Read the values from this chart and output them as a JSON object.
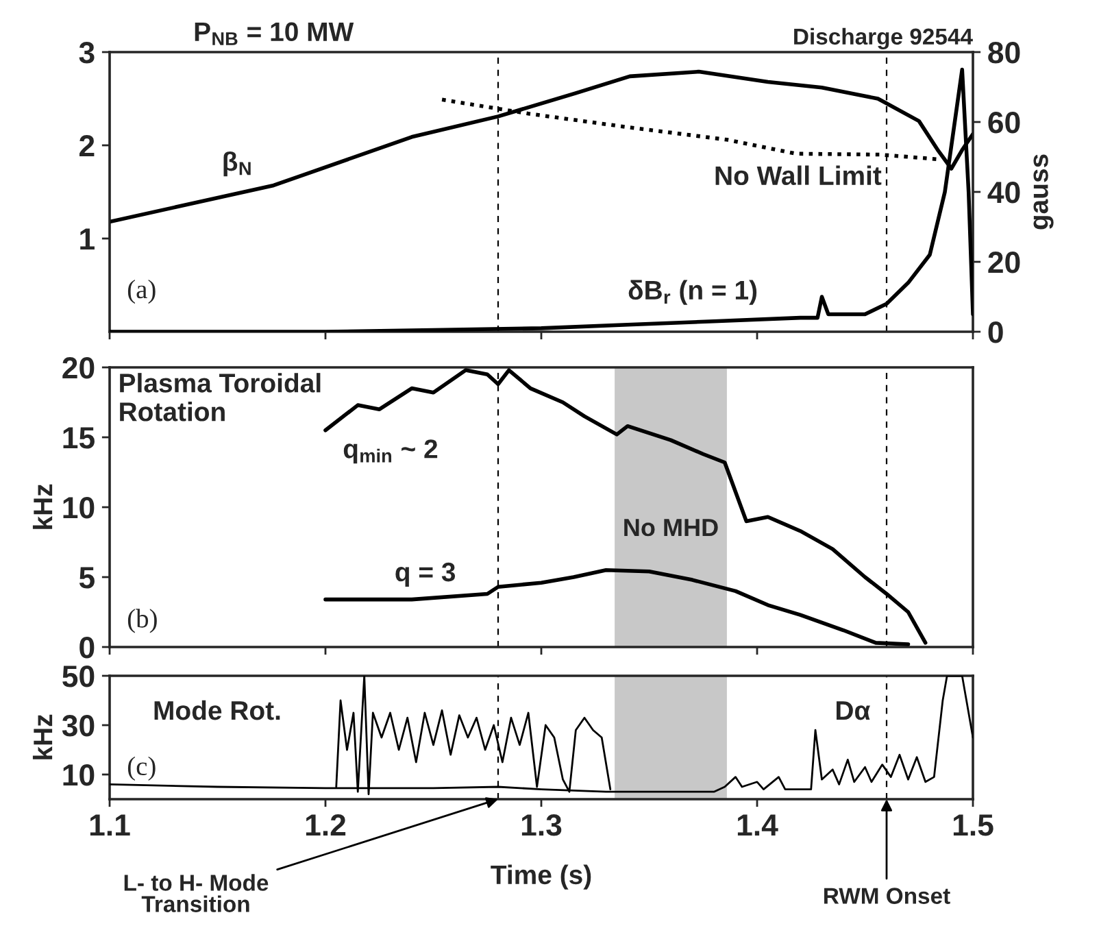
{
  "chart_data": [
    {
      "type": "line",
      "y2label": "gauss",
      "xlim": [
        1.1,
        1.5
      ],
      "xticks": [
        1.1,
        1.2,
        1.3,
        1.4,
        1.5
      ],
      "ylim": [
        0,
        3
      ],
      "yticks": [
        1,
        2,
        3
      ],
      "y2lim": [
        0,
        80
      ],
      "y2ticks": [
        0,
        20,
        40,
        60,
        80
      ],
      "tick_labels": "y",
      "grid": false,
      "legend": false,
      "annotations": [
        "P$_{NB}$ = 10 MW",
        "Discharge 92544",
        "(a)"
      ],
      "ref_lines": [
        {
          "axis": "x",
          "value": 1.28,
          "line_style": "dashed"
        },
        {
          "axis": "x",
          "value": 1.46,
          "line_style": "dashed"
        }
      ],
      "series": [
        {
          "name": "β$_{N}$",
          "color": "#000000",
          "line_style": "solid",
          "x": [
            1.1,
            1.176,
            1.24,
            1.28,
            1.316,
            1.341,
            1.373,
            1.405,
            1.43,
            1.456,
            1.475,
            1.484,
            1.49,
            1.495,
            1.5
          ],
          "values": [
            1.18,
            1.57,
            2.09,
            2.31,
            2.56,
            2.74,
            2.79,
            2.68,
            2.62,
            2.5,
            2.26,
            1.94,
            1.75,
            1.95,
            2.12
          ]
        },
        {
          "name": "No Wall Limit",
          "color": "#000000",
          "line_style": "dotted",
          "x": [
            1.254,
            1.294,
            1.335,
            1.386,
            1.418,
            1.457,
            1.484
          ],
          "values": [
            2.49,
            2.34,
            2.21,
            2.06,
            1.91,
            1.9,
            1.85
          ]
        },
        {
          "name": "δB$_{r}$ (n = 1)",
          "color": "#000000",
          "line_style": "solid",
          "axis": "y2",
          "x": [
            1.1,
            1.2,
            1.25,
            1.3,
            1.34,
            1.38,
            1.42,
            1.428,
            1.43,
            1.433,
            1.45,
            1.46,
            1.47,
            1.48,
            1.487,
            1.495,
            1.498,
            1.5
          ],
          "values": [
            0,
            0,
            0.5,
            1,
            2,
            3,
            4,
            4,
            10,
            5,
            5,
            8,
            14,
            22,
            40,
            75,
            40,
            5
          ]
        }
      ]
    },
    {
      "type": "line",
      "ylabel": "kHz",
      "xlim": [
        1.1,
        1.5
      ],
      "xticks": [
        1.1,
        1.2,
        1.3,
        1.4,
        1.5
      ],
      "ylim": [
        0,
        20
      ],
      "yticks": [
        0,
        5,
        10,
        15,
        20
      ],
      "tick_labels": "y",
      "grid": false,
      "legend": false,
      "annotations": [
        "Plasma Toroidal\nRotation",
        "(b)"
      ],
      "ref_lines": [
        {
          "axis": "x",
          "value": 1.28,
          "line_style": "dashed"
        },
        {
          "axis": "x",
          "value": 1.46,
          "line_style": "dashed"
        }
      ],
      "bands": [
        {
          "axis": "x",
          "from": 1.334,
          "to": 1.386,
          "label": "No MHD",
          "color": "#c8c8c8"
        }
      ],
      "series": [
        {
          "name": "q$_{min}$ ~ 2",
          "color": "#000000",
          "line_style": "solid",
          "x": [
            1.2,
            1.215,
            1.225,
            1.24,
            1.25,
            1.265,
            1.275,
            1.28,
            1.285,
            1.295,
            1.31,
            1.32,
            1.335,
            1.34,
            1.36,
            1.375,
            1.385,
            1.395,
            1.405,
            1.42,
            1.435,
            1.45,
            1.46,
            1.47,
            1.478
          ],
          "values": [
            15.5,
            17.3,
            17.0,
            18.5,
            18.2,
            19.8,
            19.5,
            18.8,
            19.8,
            18.5,
            17.5,
            16.5,
            15.2,
            15.8,
            14.8,
            13.8,
            13.2,
            9.0,
            9.3,
            8.3,
            7.0,
            5.0,
            3.8,
            2.5,
            0.3
          ]
        },
        {
          "name": "q = 3",
          "color": "#000000",
          "line_style": "solid",
          "x": [
            1.2,
            1.24,
            1.275,
            1.28,
            1.3,
            1.315,
            1.33,
            1.35,
            1.37,
            1.39,
            1.405,
            1.42,
            1.44,
            1.455,
            1.47
          ],
          "values": [
            3.4,
            3.4,
            3.8,
            4.3,
            4.6,
            5.0,
            5.5,
            5.4,
            4.8,
            4.0,
            3.0,
            2.3,
            1.2,
            0.3,
            0.2
          ]
        }
      ]
    },
    {
      "type": "line",
      "ylabel": "kHz",
      "xlabel": "Time (s)",
      "xlim": [
        1.1,
        1.5
      ],
      "xticks": [
        1.1,
        1.2,
        1.3,
        1.4,
        1.5
      ],
      "ylim": [
        0,
        50
      ],
      "yticks": [
        10,
        30,
        50
      ],
      "grid": false,
      "legend": false,
      "annotations": [
        "(c)"
      ],
      "ref_lines": [
        {
          "axis": "x",
          "value": 1.28,
          "line_style": "dashed",
          "label": "L- to H- Mode\nTransition"
        },
        {
          "axis": "x",
          "value": 1.46,
          "line_style": "dashed",
          "label": "RWM Onset"
        }
      ],
      "bands": [
        {
          "axis": "x",
          "from": 1.334,
          "to": 1.386,
          "color": "#c8c8c8"
        }
      ],
      "series": [
        {
          "name": "Mode Rot.",
          "color": "#000000",
          "line_style": "solid",
          "x": [
            1.205,
            1.207,
            1.21,
            1.213,
            1.215,
            1.218,
            1.22,
            1.222,
            1.226,
            1.23,
            1.234,
            1.238,
            1.242,
            1.246,
            1.25,
            1.254,
            1.258,
            1.262,
            1.266,
            1.27,
            1.274,
            1.278,
            1.282,
            1.286,
            1.29,
            1.294,
            1.298,
            1.302,
            1.306,
            1.31,
            1.313,
            1.316,
            1.32,
            1.324,
            1.328,
            1.332
          ],
          "values": [
            5,
            40,
            20,
            35,
            3,
            50,
            2,
            35,
            25,
            35,
            20,
            33,
            15,
            35,
            22,
            36,
            18,
            34,
            25,
            33,
            20,
            30,
            15,
            33,
            22,
            35,
            5,
            30,
            25,
            8,
            3,
            28,
            33,
            28,
            25,
            4
          ]
        },
        {
          "name": "Dα",
          "color": "#000000",
          "line_style": "solid",
          "x": [
            1.1,
            1.15,
            1.2,
            1.25,
            1.28,
            1.3,
            1.33,
            1.38,
            1.385,
            1.39,
            1.393,
            1.4,
            1.403,
            1.41,
            1.413,
            1.425,
            1.427,
            1.43,
            1.435,
            1.438,
            1.442,
            1.445,
            1.45,
            1.453,
            1.458,
            1.462,
            1.466,
            1.47,
            1.474,
            1.478,
            1.482,
            1.486,
            1.488,
            1.495,
            1.5
          ],
          "values": [
            6,
            5,
            4.5,
            4.5,
            5,
            4,
            3,
            3,
            5,
            9,
            5,
            7,
            4,
            9,
            4,
            4,
            28,
            8,
            12,
            6,
            16,
            7,
            13,
            7,
            14,
            9,
            18,
            8,
            17,
            7,
            9,
            40,
            50,
            50,
            25
          ]
        }
      ]
    }
  ]
}
